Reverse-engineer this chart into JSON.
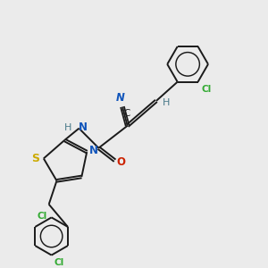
{
  "background_color": "#ebebeb",
  "bond_color": "#1a1a1a",
  "atom_colors": {
    "C": "#1a1a1a",
    "N": "#1155bb",
    "O": "#cc2200",
    "S": "#ccaa00",
    "Cl": "#33aa33",
    "H": "#4a7a8a",
    "CN_N": "#1155bb",
    "CN_C": "#1a1a1a"
  },
  "figsize": [
    3.0,
    3.0
  ],
  "dpi": 100
}
